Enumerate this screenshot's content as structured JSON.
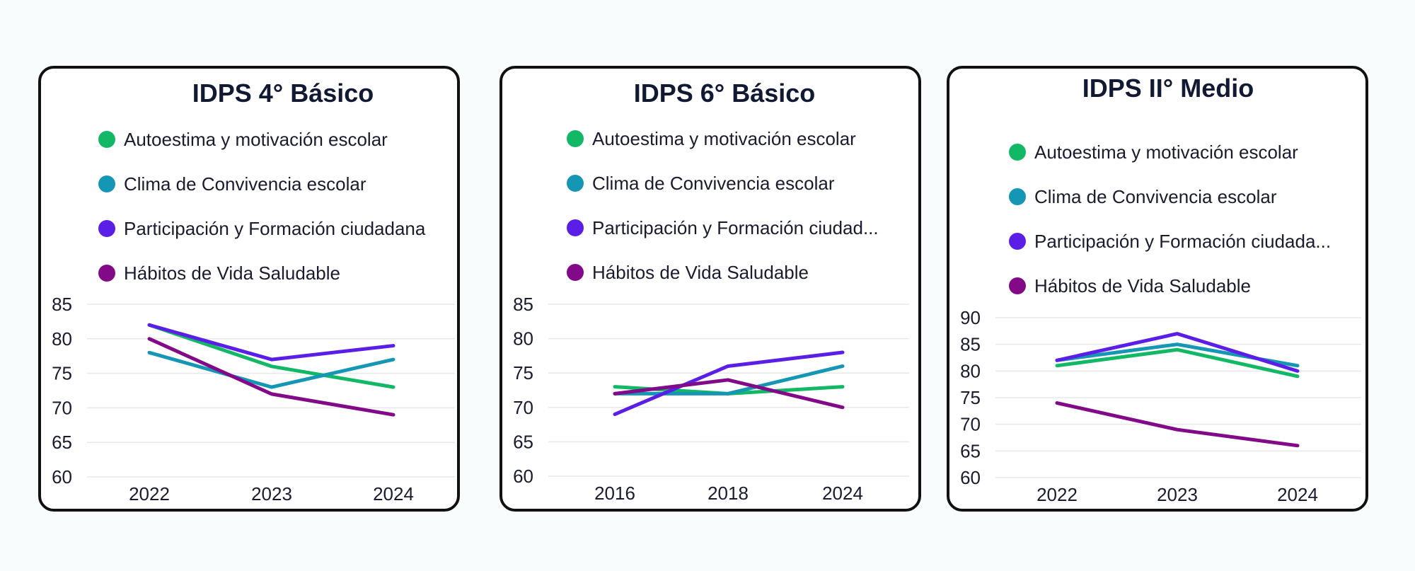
{
  "colors": {
    "green": "#12b865",
    "teal": "#1596b4",
    "violet": "#5b1ee6",
    "purple": "#820a88"
  },
  "chart_data": [
    {
      "type": "line",
      "title": "IDPS 4° Básico",
      "categories": [
        "2022",
        "2023",
        "2024"
      ],
      "ylim": [
        60,
        85
      ],
      "yticks": [
        60,
        65,
        70,
        75,
        80,
        85
      ],
      "grid": true,
      "legend": "top",
      "series": [
        {
          "name": "Autoestima y motivación escolar",
          "values": [
            82,
            76,
            73
          ],
          "color": "#12b865"
        },
        {
          "name": "Clima de Convivencia escolar",
          "values": [
            78,
            73,
            77
          ],
          "color": "#1596b4"
        },
        {
          "name": "Participación y Formación ciudadana",
          "values": [
            82,
            77,
            79
          ],
          "color": "#5b1ee6"
        },
        {
          "name": "Hábitos de Vida Saludable",
          "values": [
            80,
            72,
            69
          ],
          "color": "#820a88"
        }
      ]
    },
    {
      "type": "line",
      "title": "IDPS 6° Básico",
      "categories": [
        "2016",
        "2018",
        "2024"
      ],
      "ylim": [
        60,
        85
      ],
      "yticks": [
        60,
        65,
        70,
        75,
        80,
        85
      ],
      "grid": true,
      "legend": "top",
      "series": [
        {
          "name": "Autoestima y motivación escolar",
          "values": [
            73,
            72,
            73
          ],
          "color": "#12b865"
        },
        {
          "name": "Clima de Convivencia escolar",
          "values": [
            72,
            72,
            76
          ],
          "color": "#1596b4"
        },
        {
          "name": "Participación y Formación ciudad...",
          "values": [
            69,
            76,
            78
          ],
          "color": "#5b1ee6"
        },
        {
          "name": "Hábitos de Vida Saludable",
          "values": [
            72,
            74,
            70
          ],
          "color": "#820a88"
        }
      ]
    },
    {
      "type": "line",
      "title": "IDPS II° Medio",
      "categories": [
        "2022",
        "2023",
        "2024"
      ],
      "ylim": [
        60,
        90
      ],
      "yticks": [
        60,
        65,
        70,
        75,
        80,
        85,
        90
      ],
      "grid": true,
      "legend": "top",
      "series": [
        {
          "name": "Autoestima y motivación escolar",
          "values": [
            81,
            84,
            79
          ],
          "color": "#12b865"
        },
        {
          "name": "Clima de Convivencia escolar",
          "values": [
            82,
            85,
            81
          ],
          "color": "#1596b4"
        },
        {
          "name": "Participación y Formación ciudada...",
          "values": [
            82,
            87,
            80
          ],
          "color": "#5b1ee6"
        },
        {
          "name": "Hábitos de Vida Saludable",
          "values": [
            74,
            69,
            66
          ],
          "color": "#820a88"
        }
      ]
    }
  ]
}
